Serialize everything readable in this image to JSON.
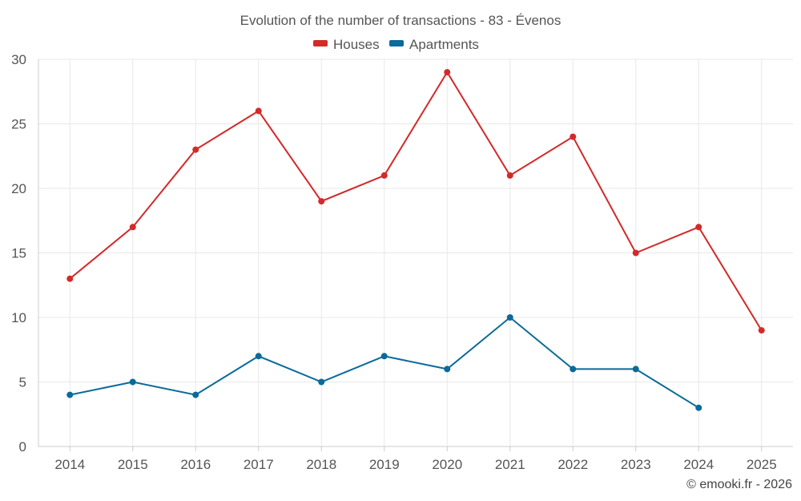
{
  "chart_data": {
    "type": "line",
    "title": "Evolution of the number of transactions - 83 - Évenos",
    "xlabel": "",
    "ylabel": "",
    "categories": [
      "2014",
      "2015",
      "2016",
      "2017",
      "2018",
      "2019",
      "2020",
      "2021",
      "2022",
      "2023",
      "2024",
      "2025"
    ],
    "ylim": [
      0,
      30
    ],
    "yticks": [
      0,
      5,
      10,
      15,
      20,
      25,
      30
    ],
    "grid": true,
    "legend_position": "top-center",
    "series": [
      {
        "name": "Houses",
        "color": "#d32a2a",
        "values": [
          13,
          17,
          23,
          26,
          19,
          21,
          29,
          21,
          24,
          15,
          17,
          9
        ]
      },
      {
        "name": "Apartments",
        "color": "#0b6a9a",
        "values": [
          4,
          5,
          4,
          7,
          5,
          7,
          6,
          10,
          6,
          6,
          3,
          null
        ]
      }
    ]
  },
  "credit": "© emooki.fr - 2026"
}
